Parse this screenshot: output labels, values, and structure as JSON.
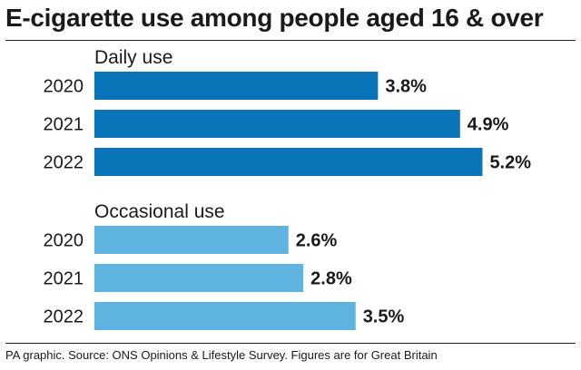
{
  "title": "E-cigarette use among people aged 16 & over",
  "source": "PA graphic. Source: ONS Opinions & Lifestyle Survey. Figures are for Great Britain",
  "chart_data": {
    "type": "bar",
    "orientation": "horizontal",
    "title": "E-cigarette use among people aged 16 & over",
    "categories": [
      "2020",
      "2021",
      "2022"
    ],
    "series": [
      {
        "name": "Daily use",
        "values": [
          3.8,
          4.9,
          5.2
        ],
        "labels": [
          "3.8%",
          "4.9%",
          "5.2%"
        ],
        "color": "#0a74b9"
      },
      {
        "name": "Occasional use",
        "values": [
          2.6,
          2.8,
          3.5
        ],
        "labels": [
          "2.6%",
          "2.8%",
          "3.5%"
        ],
        "color": "#5fb3e0"
      }
    ],
    "grid": false,
    "legend": "none"
  }
}
